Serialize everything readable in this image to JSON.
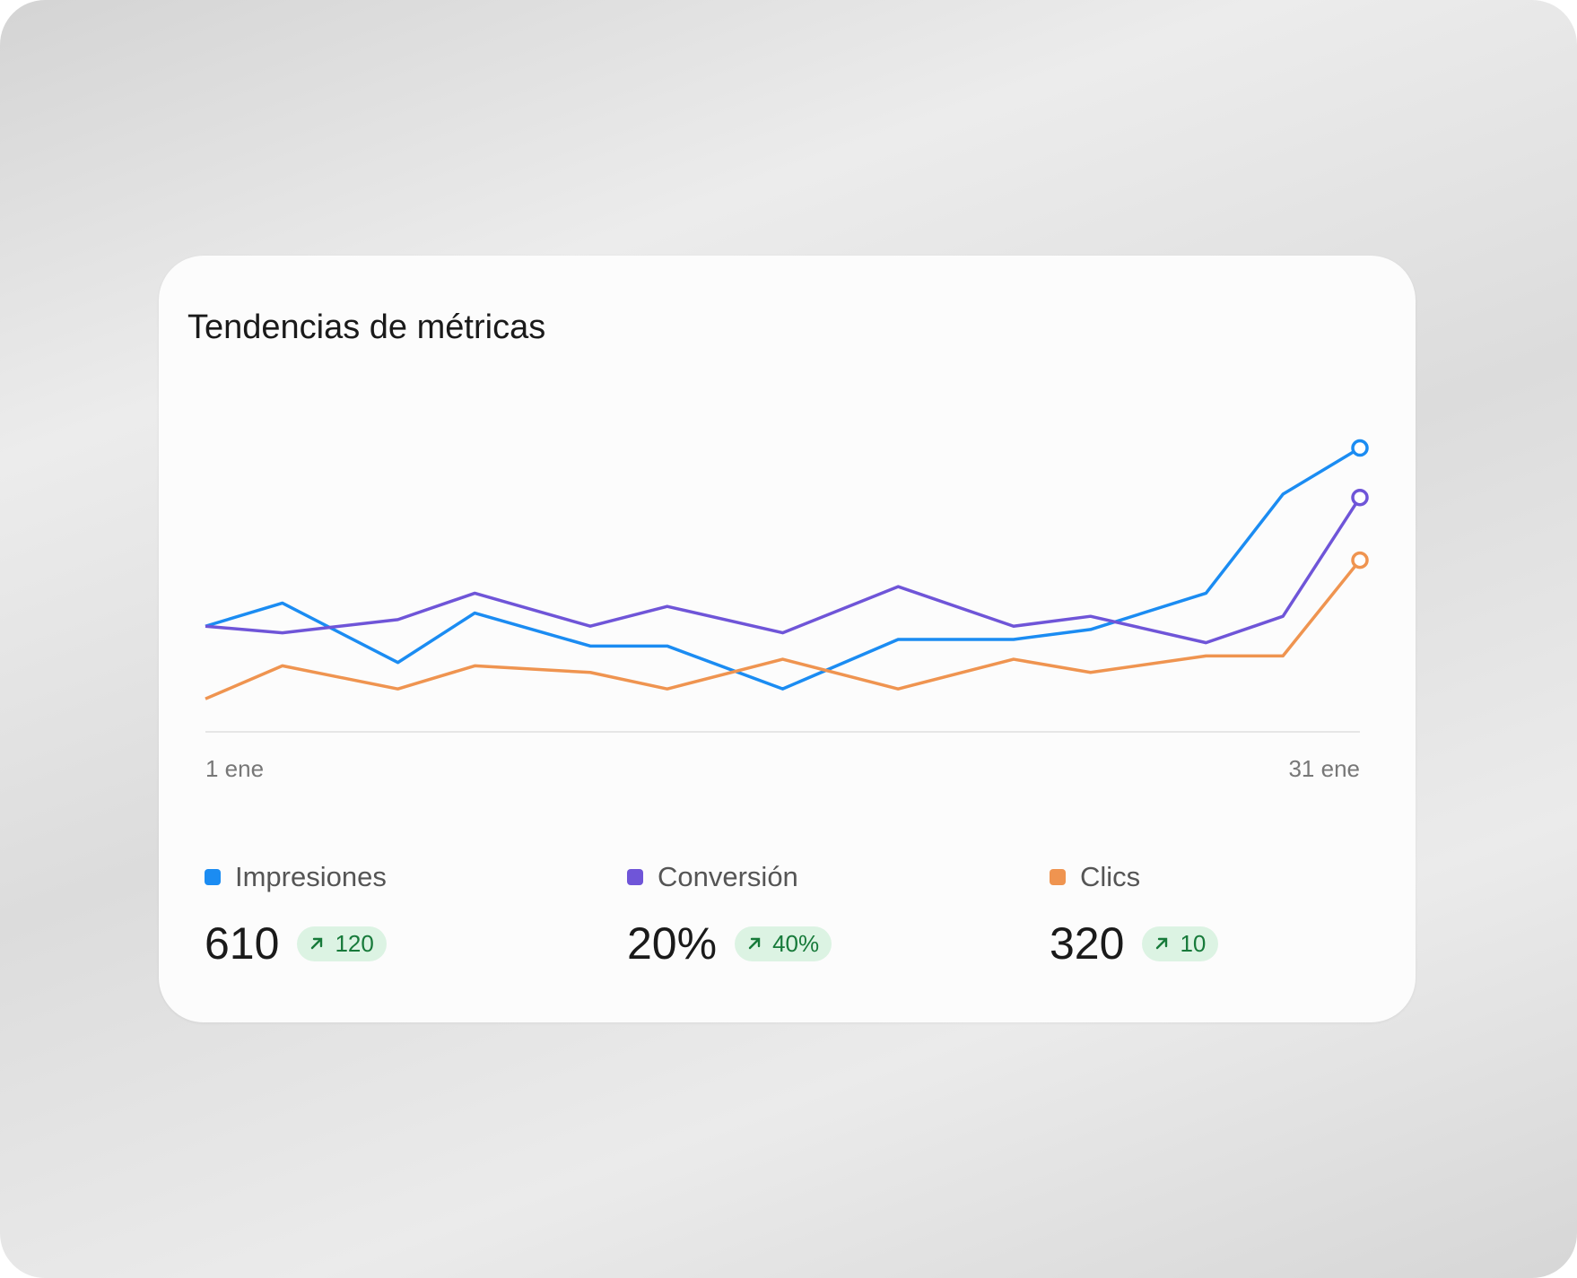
{
  "chart_data": {
    "type": "line",
    "title": "Tendencias de métricas",
    "x": [
      1,
      3,
      6,
      8,
      11,
      13,
      16,
      19,
      22,
      24,
      27,
      29,
      31
    ],
    "xlim": [
      1,
      31
    ],
    "xticks": [
      {
        "value": 1,
        "label": "1 ene"
      },
      {
        "value": 31,
        "label": "31 ene"
      }
    ],
    "ylim": [
      0,
      100
    ],
    "series": [
      {
        "name": "Impresiones",
        "color": "#1b8cf2",
        "values": [
          32,
          39,
          21,
          36,
          26,
          26,
          13,
          28,
          28,
          31,
          42,
          72,
          86
        ],
        "total": "610",
        "change": "120"
      },
      {
        "name": "Conversión",
        "color": "#6f55d8",
        "values": [
          32,
          30,
          34,
          42,
          32,
          38,
          30,
          44,
          32,
          35,
          27,
          35,
          71
        ],
        "total": "20%",
        "change": "40%"
      },
      {
        "name": "Clics",
        "color": "#ef9450",
        "values": [
          10,
          20,
          13,
          20,
          18,
          13,
          22,
          13,
          22,
          18,
          23,
          23,
          52
        ],
        "total": "320",
        "change": "10"
      }
    ]
  }
}
